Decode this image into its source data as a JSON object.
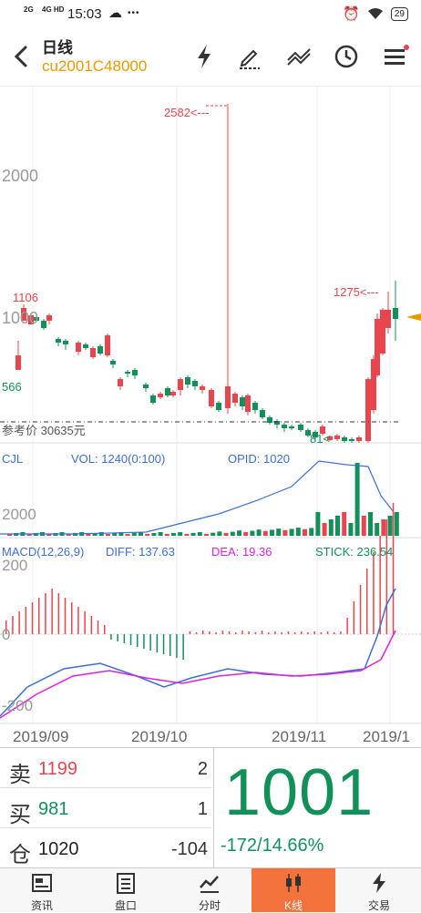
{
  "status_bar": {
    "network_1": "2G",
    "network_2": "4G HD",
    "time": "15:03",
    "overflow": "•••",
    "battery": "29"
  },
  "header": {
    "title": "日线",
    "subtitle": "cu2001C48000"
  },
  "chart": {
    "price_axis": [
      "2000",
      "1000"
    ],
    "annotations": {
      "max_label": "2582<---",
      "high_label": "1106",
      "low_label": "566",
      "recent_high_label": "1275<---",
      "min_label": "81<"
    },
    "reference_line_label": "参考价 30635元"
  },
  "volume_panel": {
    "name": "CJL",
    "vol_label": "VOL: 1240(0:100)",
    "opid_label": "OPID: 1020",
    "axis_label": "2000"
  },
  "macd_panel": {
    "name": "MACD(12,26,9)",
    "diff_label": "DIFF: 137.63",
    "dea_label": "DEA: 19.36",
    "stick_label": "STICK: 236.54",
    "axis_labels": [
      "200",
      "0",
      "-200"
    ]
  },
  "date_axis": [
    "2019/09",
    "2019/10",
    "2019/11",
    "2019/1"
  ],
  "order_book": {
    "sell_label": "卖",
    "sell_price": "1199",
    "sell_qty": "2",
    "buy_label": "买",
    "buy_price": "981",
    "buy_qty": "1",
    "oi_label": "仓",
    "oi_value": "1020",
    "oi_change": "-104"
  },
  "quote": {
    "last_price": "1001",
    "change": "-172/14.66%"
  },
  "tabs": [
    {
      "label": "资讯",
      "icon": "news-icon"
    },
    {
      "label": "盘口",
      "icon": "orderbook-icon"
    },
    {
      "label": "分时",
      "icon": "intraday-icon"
    },
    {
      "label": "K线",
      "icon": "candlestick-icon"
    },
    {
      "label": "交易",
      "icon": "trade-icon"
    }
  ],
  "active_tab": "K线",
  "colors": {
    "up": "#e8454e",
    "down": "#12905a",
    "accent": "#e69a00",
    "diff": "#3b6fd6",
    "dea": "#e020e0",
    "active_tab": "#f4733c"
  }
}
